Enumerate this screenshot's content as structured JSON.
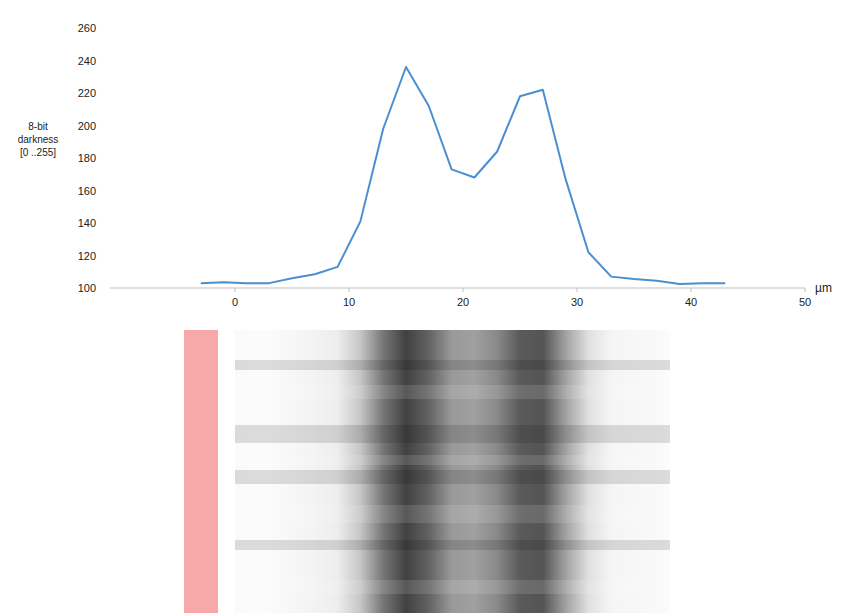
{
  "chart_data": {
    "type": "line",
    "ylabel": "8-bit darkness [0 ..255]",
    "xlabel": "µm",
    "x": [
      -3,
      -1,
      1,
      3,
      5,
      7,
      9,
      11,
      13,
      15,
      17,
      19,
      21,
      23,
      25,
      27,
      29,
      31,
      33,
      35,
      37,
      39,
      41,
      43
    ],
    "values": [
      103,
      103.5,
      103,
      103,
      106,
      108.5,
      113,
      141,
      198,
      236,
      212,
      173,
      168,
      184,
      218,
      222,
      167,
      122,
      107,
      105.5,
      104.5,
      102.5,
      103,
      103
    ],
    "color": "#4a8fd0",
    "xlim": [
      -11,
      50
    ],
    "xticks": [
      0,
      10,
      20,
      30,
      40,
      50
    ],
    "ylim": [
      100,
      260
    ],
    "yticks": [
      100,
      120,
      140,
      160,
      180,
      200,
      220,
      240,
      260
    ],
    "grid": false
  }
}
